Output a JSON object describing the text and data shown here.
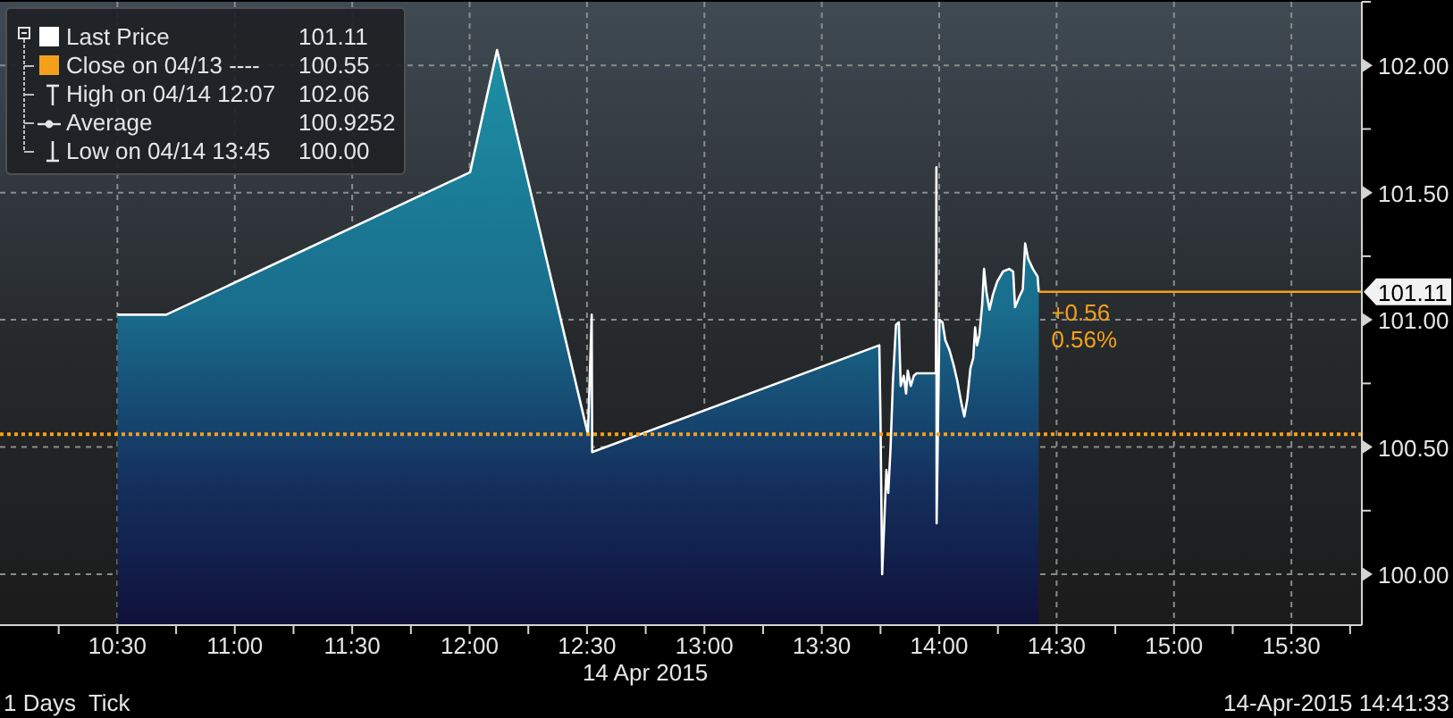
{
  "chart_data": {
    "type": "area",
    "xlabel": "14 Apr 2015",
    "series": [
      {
        "name": "Last Price",
        "color": "#ffffff",
        "x": [
          10.5,
          10.708,
          12.002,
          12.117,
          12.504,
          12.52,
          12.522,
          13.745,
          13.75,
          13.757,
          13.765,
          13.775,
          13.783,
          13.793,
          13.803,
          13.816,
          13.828,
          13.836,
          13.849,
          13.859,
          13.866,
          13.879,
          13.892,
          13.904,
          13.986,
          13.988,
          13.989,
          14.001,
          14.014,
          14.026,
          14.044,
          14.062,
          14.077,
          14.095,
          14.107,
          14.12,
          14.133,
          14.145,
          14.153,
          14.161,
          14.171,
          14.183,
          14.191,
          14.201,
          14.214,
          14.229,
          14.247,
          14.272,
          14.298,
          14.315,
          14.323,
          14.341,
          14.356,
          14.366,
          14.379,
          14.399,
          14.419,
          14.424
        ],
        "values": [
          101.02,
          101.02,
          101.58,
          102.06,
          100.55,
          101.02,
          100.48,
          100.9,
          100.6,
          100.0,
          100.18,
          100.41,
          100.32,
          100.5,
          100.76,
          100.98,
          100.99,
          100.74,
          100.78,
          100.71,
          100.8,
          100.74,
          100.78,
          100.79,
          100.79,
          101.6,
          100.2,
          101.0,
          100.99,
          100.92,
          100.88,
          100.82,
          100.76,
          100.67,
          100.62,
          100.69,
          100.81,
          100.85,
          100.97,
          100.9,
          100.94,
          101.06,
          101.2,
          101.11,
          101.04,
          101.1,
          101.15,
          101.19,
          101.2,
          101.19,
          101.05,
          101.09,
          101.12,
          101.3,
          101.24,
          101.2,
          101.17,
          101.11
        ]
      }
    ],
    "xlim": [
      10.0,
      15.8
    ],
    "xticks": [
      {
        "value": 10.25,
        "label": null
      },
      {
        "value": 10.5,
        "label": "10:30"
      },
      {
        "value": 10.75,
        "label": null
      },
      {
        "value": 11,
        "label": "11:00"
      },
      {
        "value": 11.25,
        "label": null
      },
      {
        "value": 11.5,
        "label": "11:30"
      },
      {
        "value": 11.75,
        "label": null
      },
      {
        "value": 12,
        "label": "12:00"
      },
      {
        "value": 12.25,
        "label": null
      },
      {
        "value": 12.5,
        "label": "12:30"
      },
      {
        "value": 12.75,
        "label": null
      },
      {
        "value": 13,
        "label": "13:00"
      },
      {
        "value": 13.25,
        "label": null
      },
      {
        "value": 13.5,
        "label": "13:30"
      },
      {
        "value": 13.75,
        "label": null
      },
      {
        "value": 14,
        "label": "14:00"
      },
      {
        "value": 14.25,
        "label": null
      },
      {
        "value": 14.5,
        "label": "14:30"
      },
      {
        "value": 14.75,
        "label": null
      },
      {
        "value": 15,
        "label": "15:00"
      },
      {
        "value": 15.25,
        "label": null
      },
      {
        "value": 15.5,
        "label": "15:30"
      },
      {
        "value": 15.75,
        "label": null
      }
    ],
    "ylim": [
      99.8,
      102.25
    ],
    "yticks": [
      {
        "value": 100,
        "label": "100.00"
      },
      {
        "value": 100.25,
        "label": null
      },
      {
        "value": 100.5,
        "label": "100.50"
      },
      {
        "value": 100.75,
        "label": null
      },
      {
        "value": 101,
        "label": "101.00"
      },
      {
        "value": 101.25,
        "label": null
      },
      {
        "value": 101.5,
        "label": "101.50"
      },
      {
        "value": 101.75,
        "label": null
      },
      {
        "value": 102,
        "label": "102.00"
      },
      {
        "value": 102.25,
        "label": null
      }
    ],
    "grid": true,
    "legend": "top left",
    "ref_lines": [
      {
        "axis": "y",
        "value": 100.55,
        "label": "Close on 04/13 ----",
        "color": "#f5a01a",
        "line_style": "dotted"
      },
      {
        "axis": "y",
        "value": 101.11,
        "label": "101.11",
        "color": "#f5a01a",
        "line_style": "solid"
      }
    ],
    "annotations": [
      "101.11",
      "100.55",
      "High on 04/14 12:07",
      "102.06",
      "Average",
      "100.9252",
      "Low on 04/14 13:45",
      "100.00",
      "+0.56",
      "0.56%",
      "1 Days  Tick",
      "14-Apr-2015 14:41:33"
    ]
  }
}
